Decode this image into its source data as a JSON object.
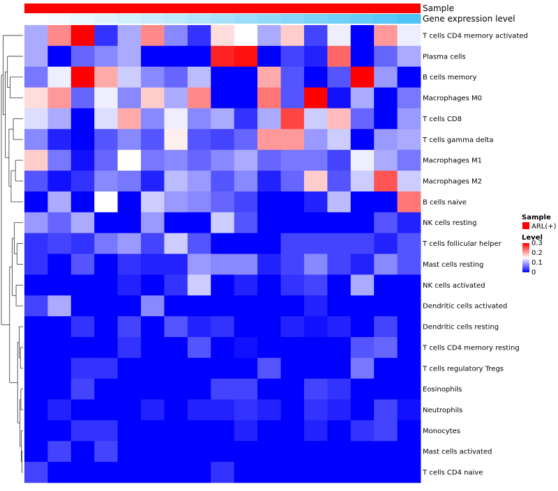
{
  "chart_data": {
    "type": "heatmap",
    "annotations": [
      {
        "name": "Sample",
        "kind": "solid",
        "color": "#ff0000"
      },
      {
        "name": "Gene expression level",
        "kind": "gradient",
        "from": "#ffffff",
        "to": "#4fc3f7"
      }
    ],
    "columns": 17,
    "rows": [
      "T cells CD4 memory activated",
      "Plasma cells",
      "B cells memory",
      "Macrophages M0",
      "T cells CD8",
      "T cells gamma delta",
      "Macrophages M1",
      "Macrophages M2",
      "B cells naive",
      "NK cells resting",
      "T cells follicular helper",
      "Mast cells resting",
      "NK cells activated",
      "Dendritic cells activated",
      "Dendritic cells resting",
      "T cells CD4 memory resting",
      "T cells regulatory  Tregs",
      "Eosinophils",
      "Neutrophils",
      "Monocytes",
      "Mast cells activated",
      "T cells CD4 naive"
    ],
    "values": [
      [
        0.1,
        0.22,
        0.3,
        0.03,
        0.1,
        0.22,
        0.08,
        0.03,
        0.17,
        0.15,
        0.1,
        0.18,
        0.04,
        0.14,
        0.0,
        0.21,
        0.14
      ],
      [
        0.1,
        0.0,
        0.06,
        0.08,
        0.1,
        0.0,
        0.0,
        0.0,
        0.28,
        0.29,
        0.0,
        0.04,
        0.02,
        0.24,
        0.0,
        0.06,
        0.1
      ],
      [
        0.07,
        0.14,
        0.3,
        0.2,
        0.12,
        0.08,
        0.06,
        0.11,
        0.0,
        0.0,
        0.2,
        0.05,
        0.0,
        0.05,
        0.3,
        0.09,
        0.0
      ],
      [
        0.17,
        0.21,
        0.06,
        0.14,
        0.08,
        0.18,
        0.1,
        0.22,
        0.0,
        0.0,
        0.23,
        0.05,
        0.3,
        0.01,
        0.1,
        0.0,
        0.07
      ],
      [
        0.13,
        0.1,
        0.0,
        0.13,
        0.2,
        0.08,
        0.14,
        0.08,
        0.1,
        0.03,
        0.1,
        0.26,
        0.12,
        0.19,
        0.06,
        0.0,
        0.09
      ],
      [
        0.08,
        0.02,
        0.0,
        0.05,
        0.08,
        0.05,
        0.16,
        0.05,
        0.04,
        0.06,
        0.21,
        0.21,
        0.09,
        0.12,
        0.0,
        0.09,
        0.1
      ],
      [
        0.18,
        0.07,
        0.01,
        0.06,
        0.15,
        0.07,
        0.08,
        0.06,
        0.08,
        0.1,
        0.06,
        0.07,
        0.07,
        0.04,
        0.14,
        0.1,
        0.07
      ],
      [
        0.05,
        0.01,
        0.03,
        0.08,
        0.07,
        0.02,
        0.11,
        0.09,
        0.05,
        0.08,
        0.02,
        0.06,
        0.18,
        0.05,
        0.12,
        0.25,
        0.12
      ],
      [
        0.0,
        0.1,
        0.0,
        0.15,
        0.0,
        0.12,
        0.09,
        0.08,
        0.06,
        0.04,
        0.0,
        0.0,
        0.02,
        0.11,
        0.0,
        0.0,
        0.23
      ],
      [
        0.09,
        0.06,
        0.1,
        0.0,
        0.0,
        0.09,
        0.0,
        0.0,
        0.12,
        0.05,
        0.0,
        0.0,
        0.0,
        0.0,
        0.0,
        0.05,
        0.02
      ],
      [
        0.03,
        0.04,
        0.03,
        0.07,
        0.09,
        0.04,
        0.12,
        0.05,
        0.0,
        0.0,
        0.0,
        0.04,
        0.04,
        0.04,
        0.04,
        0.02,
        0.05
      ],
      [
        0.03,
        0.0,
        0.05,
        0.0,
        0.03,
        0.02,
        0.02,
        0.09,
        0.08,
        0.08,
        0.02,
        0.04,
        0.08,
        0.04,
        0.02,
        0.08,
        0.05
      ],
      [
        0.0,
        0.0,
        0.0,
        0.0,
        0.02,
        0.0,
        0.03,
        0.12,
        0.0,
        0.02,
        0.0,
        0.03,
        0.04,
        0.0,
        0.1,
        0.0,
        0.0
      ],
      [
        0.04,
        0.1,
        0.0,
        0.0,
        0.0,
        0.08,
        0.0,
        0.0,
        0.0,
        0.0,
        0.0,
        0.0,
        0.02,
        0.0,
        0.0,
        0.0,
        0.0
      ],
      [
        0.0,
        0.0,
        0.03,
        0.0,
        0.04,
        0.0,
        0.05,
        0.02,
        0.03,
        0.0,
        0.0,
        0.02,
        0.01,
        0.02,
        0.0,
        0.04,
        0.0
      ],
      [
        0.0,
        0.0,
        0.0,
        0.0,
        0.03,
        0.0,
        0.0,
        0.05,
        0.0,
        0.01,
        0.0,
        0.0,
        0.0,
        0.0,
        0.05,
        0.06,
        0.0
      ],
      [
        0.0,
        0.0,
        0.03,
        0.03,
        0.0,
        0.0,
        0.0,
        0.0,
        0.0,
        0.0,
        0.05,
        0.0,
        0.0,
        0.0,
        0.07,
        0.0,
        0.0
      ],
      [
        0.0,
        0.0,
        0.04,
        0.0,
        0.0,
        0.0,
        0.0,
        0.0,
        0.04,
        0.04,
        0.0,
        0.0,
        0.04,
        0.03,
        0.0,
        0.0,
        0.0
      ],
      [
        0.0,
        0.02,
        0.0,
        0.0,
        0.0,
        0.02,
        0.0,
        0.02,
        0.02,
        0.03,
        0.02,
        0.0,
        0.03,
        0.02,
        0.0,
        0.04,
        0.01
      ],
      [
        0.0,
        0.0,
        0.03,
        0.03,
        0.0,
        0.0,
        0.0,
        0.0,
        0.0,
        0.02,
        0.0,
        0.0,
        0.02,
        0.0,
        0.03,
        0.04,
        0.0
      ],
      [
        0.0,
        0.04,
        0.0,
        0.04,
        0.0,
        0.0,
        0.0,
        0.0,
        0.0,
        0.0,
        0.0,
        0.0,
        0.0,
        0.0,
        0.0,
        0.0,
        0.0
      ],
      [
        0.04,
        0.0,
        0.0,
        0.0,
        0.0,
        0.0,
        0.0,
        0.0,
        0.03,
        0.0,
        0.0,
        0.0,
        0.0,
        0.0,
        0.0,
        0.0,
        0.0
      ]
    ],
    "color_scale": {
      "min": 0,
      "mid": 0.15,
      "max": 0.3,
      "low": "#0000ff",
      "mid_color": "#ffffff",
      "high": "#ff0000"
    },
    "legend": {
      "sample_title": "Sample",
      "sample_entry": "ARL(+)",
      "sample_color": "#ff0000",
      "level_title": "Level",
      "level_ticks": [
        "0.3",
        "0.2",
        "0.1",
        "0"
      ],
      "level_tick_values": [
        0.3,
        0.2,
        0.1,
        0
      ]
    },
    "dendrogram": "row"
  }
}
